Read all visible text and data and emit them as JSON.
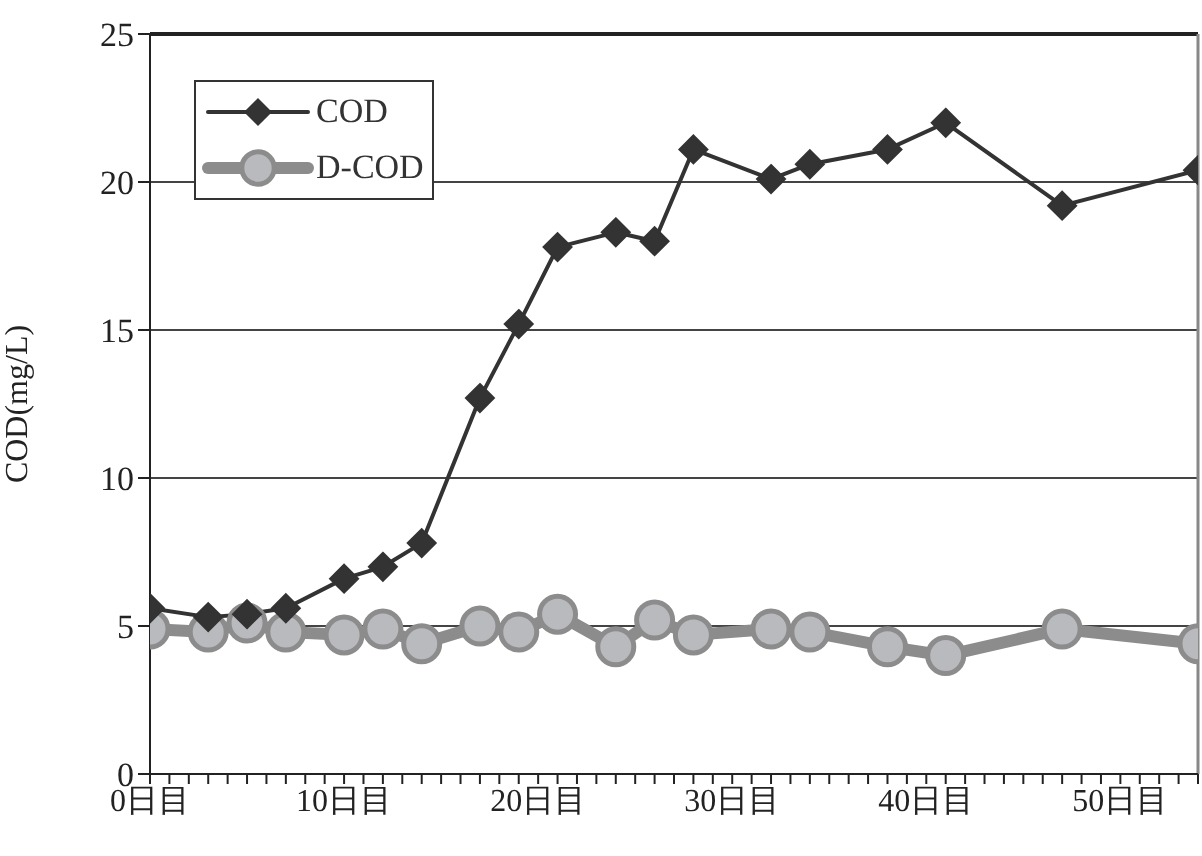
{
  "chart_data": {
    "type": "line",
    "ylabel": "COD(mg/L)",
    "x": [
      0,
      3,
      5,
      7,
      10,
      12,
      14,
      17,
      19,
      21,
      24,
      26,
      28,
      32,
      34,
      38,
      41,
      47,
      54
    ],
    "series": [
      {
        "name": "COD",
        "color": "#333333",
        "marker": "diamond",
        "values": [
          5.6,
          5.3,
          5.4,
          5.6,
          6.6,
          7.0,
          7.8,
          12.7,
          15.2,
          17.8,
          18.3,
          18.0,
          21.1,
          20.1,
          20.6,
          21.1,
          22.0,
          19.2,
          20.4
        ]
      },
      {
        "name": "D-COD",
        "color": "#8c8c8c",
        "marker": "circle",
        "values": [
          4.9,
          4.8,
          5.1,
          4.8,
          4.7,
          4.9,
          4.4,
          5.0,
          4.8,
          5.4,
          4.3,
          5.2,
          4.7,
          4.9,
          4.8,
          4.3,
          4.0,
          4.9,
          4.4
        ]
      }
    ],
    "xlim": [
      0,
      54
    ],
    "xticks": [
      {
        "value": 0,
        "label": "0日目"
      },
      {
        "value": 1,
        "label": null
      },
      {
        "value": 2,
        "label": null
      },
      {
        "value": 3,
        "label": null
      },
      {
        "value": 4,
        "label": null
      },
      {
        "value": 5,
        "label": null
      },
      {
        "value": 6,
        "label": null
      },
      {
        "value": 7,
        "label": null
      },
      {
        "value": 8,
        "label": null
      },
      {
        "value": 9,
        "label": null
      },
      {
        "value": 10,
        "label": "10日目"
      },
      {
        "value": 11,
        "label": null
      },
      {
        "value": 12,
        "label": null
      },
      {
        "value": 13,
        "label": null
      },
      {
        "value": 14,
        "label": null
      },
      {
        "value": 15,
        "label": null
      },
      {
        "value": 16,
        "label": null
      },
      {
        "value": 17,
        "label": null
      },
      {
        "value": 18,
        "label": null
      },
      {
        "value": 19,
        "label": null
      },
      {
        "value": 20,
        "label": "20日目"
      },
      {
        "value": 21,
        "label": null
      },
      {
        "value": 22,
        "label": null
      },
      {
        "value": 23,
        "label": null
      },
      {
        "value": 24,
        "label": null
      },
      {
        "value": 25,
        "label": null
      },
      {
        "value": 26,
        "label": null
      },
      {
        "value": 27,
        "label": null
      },
      {
        "value": 28,
        "label": null
      },
      {
        "value": 29,
        "label": null
      },
      {
        "value": 30,
        "label": "30日目"
      },
      {
        "value": 31,
        "label": null
      },
      {
        "value": 32,
        "label": null
      },
      {
        "value": 33,
        "label": null
      },
      {
        "value": 34,
        "label": null
      },
      {
        "value": 35,
        "label": null
      },
      {
        "value": 36,
        "label": null
      },
      {
        "value": 37,
        "label": null
      },
      {
        "value": 38,
        "label": null
      },
      {
        "value": 39,
        "label": null
      },
      {
        "value": 40,
        "label": "40日目"
      },
      {
        "value": 41,
        "label": null
      },
      {
        "value": 42,
        "label": null
      },
      {
        "value": 43,
        "label": null
      },
      {
        "value": 44,
        "label": null
      },
      {
        "value": 45,
        "label": null
      },
      {
        "value": 46,
        "label": null
      },
      {
        "value": 47,
        "label": null
      },
      {
        "value": 48,
        "label": null
      },
      {
        "value": 49,
        "label": null
      },
      {
        "value": 50,
        "label": "50日目"
      },
      {
        "value": 51,
        "label": null
      },
      {
        "value": 52,
        "label": null
      },
      {
        "value": 53,
        "label": null
      },
      {
        "value": 54,
        "label": null
      }
    ],
    "ylim": [
      0,
      25
    ],
    "yticks": [
      0,
      5,
      10,
      15,
      20,
      25
    ],
    "grid": "y",
    "legend": "top left",
    "line_style": "solid"
  }
}
